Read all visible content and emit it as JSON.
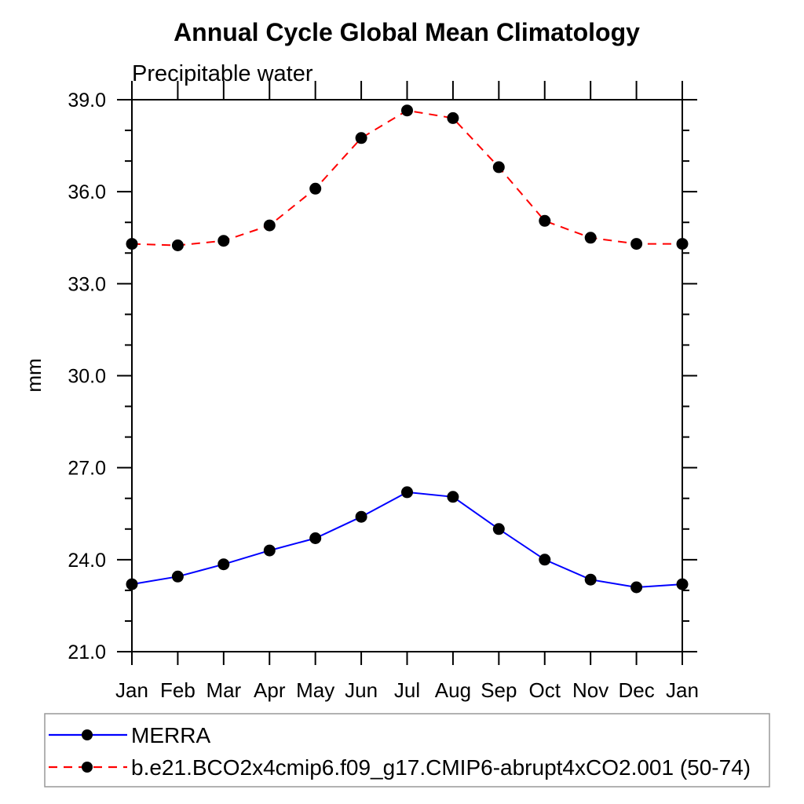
{
  "page": {
    "background": "#ffffff"
  },
  "chart_data": {
    "type": "line",
    "title": "Annual Cycle Global Mean Climatology",
    "subtitle": "Precipitable water",
    "xlabel": "",
    "ylabel": "mm",
    "x_categories": [
      "Jan",
      "Feb",
      "Mar",
      "Apr",
      "May",
      "Jun",
      "Jul",
      "Aug",
      "Sep",
      "Oct",
      "Nov",
      "Dec",
      "Jan"
    ],
    "ylim": [
      21.0,
      39.0
    ],
    "ytick_major_values": [
      21.0,
      24.0,
      27.0,
      30.0,
      33.0,
      36.0,
      39.0
    ],
    "ytick_major_labels": [
      "21.0",
      "24.0",
      "27.0",
      "30.0",
      "33.0",
      "36.0",
      "39.0"
    ],
    "ytick_minor_step": 1.0,
    "grid": false,
    "legend_position": "bottom-left-box",
    "colors": {
      "axis": "#000000",
      "marker": "#000000",
      "merra_line": "#0000ff",
      "model_line": "#ff0000",
      "legend_border": "#999999"
    },
    "series": [
      {
        "name": "MERRA",
        "line_style": "solid",
        "color": "#0000ff",
        "marker": "filled-circle",
        "marker_color": "#000000",
        "values": [
          23.2,
          23.45,
          23.85,
          24.3,
          24.7,
          25.4,
          26.2,
          26.05,
          25.0,
          24.0,
          23.35,
          23.1,
          23.2
        ]
      },
      {
        "name": "b.e21.BCO2x4cmip6.f09_g17.CMIP6-abrupt4xCO2.001 (50-74)",
        "line_style": "dashed",
        "color": "#ff0000",
        "marker": "filled-circle",
        "marker_color": "#000000",
        "values": [
          34.3,
          34.25,
          34.4,
          34.9,
          36.1,
          37.75,
          38.65,
          38.4,
          36.8,
          35.05,
          34.5,
          34.3,
          34.3
        ]
      }
    ]
  }
}
